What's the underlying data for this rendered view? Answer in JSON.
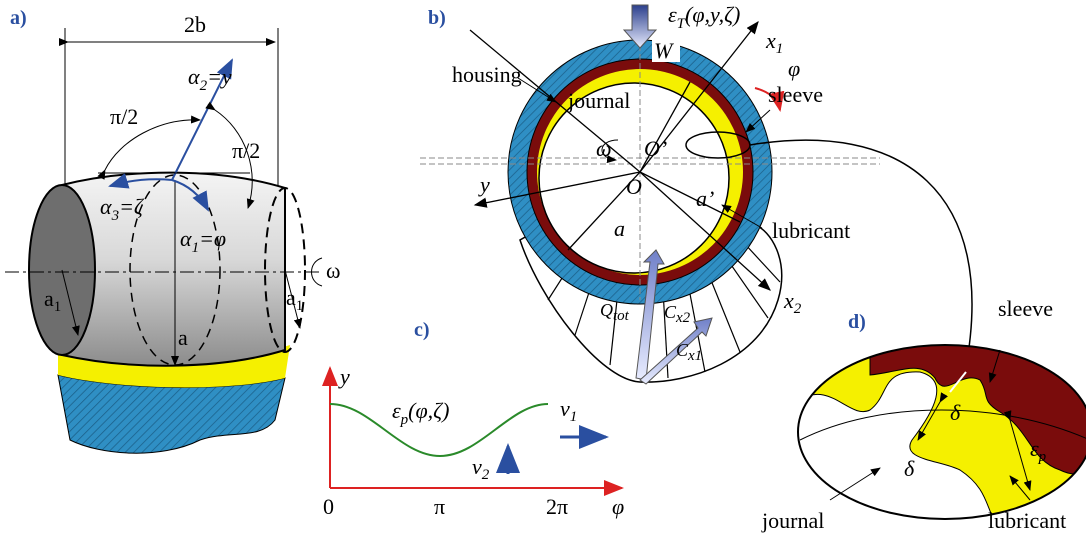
{
  "panel_a": {
    "label": "a)",
    "width": "2b",
    "alpha2": {
      "sym": "α",
      "sub": "2",
      "rest": "=y"
    },
    "angle_top": "π/2",
    "angle_right": "π/2",
    "alpha3": {
      "sym": "α",
      "sub": "3",
      "rest": "=ζ"
    },
    "alpha1": {
      "sym": "α",
      "sub": "1",
      "rest": "=φ"
    },
    "omega": "ω",
    "a1_left": {
      "sym": "a",
      "sub": "1"
    },
    "a_mid": "a",
    "a1_right": {
      "sym": "a",
      "sub": "1"
    }
  },
  "panel_b": {
    "label": "b)",
    "strain": {
      "sym": "ε",
      "sub": "T",
      "rest": "(φ,y,ζ)"
    },
    "load": "W",
    "x1": {
      "sym": "x",
      "sub": "1"
    },
    "phi": "φ",
    "housing": "housing",
    "journal": "journal",
    "sleeve": "sleeve",
    "omega": "ω",
    "o_prime": "O’",
    "o": "O",
    "y": "y",
    "a_prime": "a’",
    "lubricant": "lubricant",
    "a": "a",
    "x2": {
      "sym": "x",
      "sub": "2"
    },
    "q_tot": {
      "sym": "Q",
      "sub": "tot"
    },
    "c_x2": {
      "sym": "C",
      "sub": "x2"
    },
    "c_x1": {
      "sym": "C",
      "sub": "x1"
    }
  },
  "panel_c": {
    "label": "c)",
    "y_axis": "y",
    "curve": {
      "sym": "ε",
      "sub": "p",
      "rest": "(φ,ζ)"
    },
    "v1": {
      "sym": "v",
      "sub": "1"
    },
    "v2": {
      "sym": "v",
      "sub": "2"
    },
    "tick_0": "0",
    "tick_pi": "π",
    "tick_2pi": "2π",
    "x_axis": "φ"
  },
  "panel_d": {
    "label": "d)",
    "sleeve": "sleeve",
    "delta_top": "δ",
    "delta_bottom": "δ",
    "eps": {
      "sym": "ε",
      "sub": "p"
    },
    "journal": "journal",
    "lubricant": "lubricant"
  }
}
